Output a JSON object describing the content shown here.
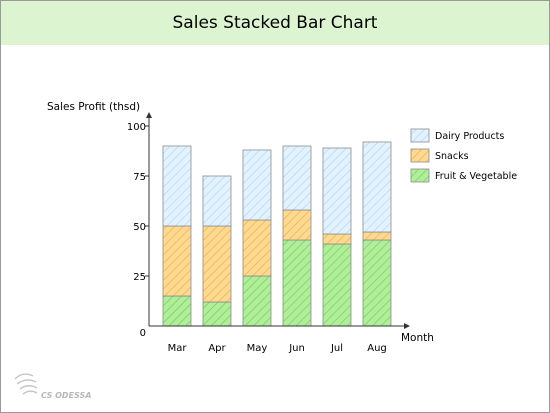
{
  "colors": {
    "title_bg": "#dcf5d0",
    "dairy_fill": "#e3f2ff",
    "dairy_hatch": "#a9d3f5",
    "snacks_fill": "#ffd98f",
    "snacks_hatch": "#e8ac4a",
    "fruit_fill": "#b0ee9a",
    "fruit_hatch": "#6ec956",
    "axis": "#333333"
  },
  "logo": {
    "text": "CS ODESSA"
  },
  "chart_data": {
    "type": "bar",
    "stacked": true,
    "title": "Sales Stacked Bar Chart",
    "xlabel": "Month",
    "ylabel": "Sales Profit (thsd)",
    "categories": [
      "Mar",
      "Apr",
      "May",
      "Jun",
      "Jul",
      "Aug"
    ],
    "ylim": [
      0,
      100
    ],
    "yticks": [
      {
        "value": 0,
        "label": "0"
      },
      {
        "value": 25,
        "label": "25"
      },
      {
        "value": 50,
        "label": "50"
      },
      {
        "value": 75,
        "label": "75"
      },
      {
        "value": 100,
        "label": "100"
      }
    ],
    "series": [
      {
        "name": "Fruit & Vegetable",
        "key": "fruit",
        "values": [
          15,
          12,
          25,
          43,
          41,
          43
        ]
      },
      {
        "name": "Snacks",
        "key": "snacks",
        "values": [
          35,
          38,
          28,
          15,
          5,
          4
        ]
      },
      {
        "name": "Dairy Products",
        "key": "dairy",
        "values": [
          40,
          25,
          35,
          32,
          43,
          45
        ]
      }
    ],
    "legend_order": [
      "dairy",
      "snacks",
      "fruit"
    ],
    "legend_position": "right",
    "grid": false
  }
}
